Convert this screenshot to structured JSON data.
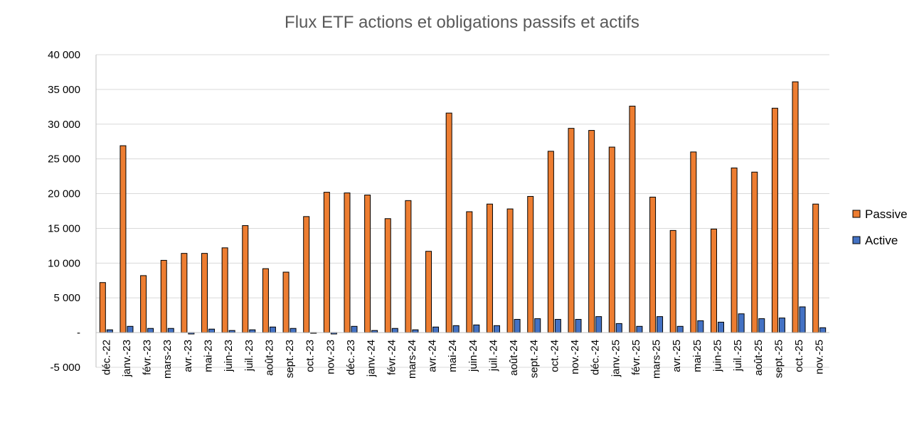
{
  "chart_data": {
    "type": "bar",
    "title": "Flux ETF actions et obligations passifs et actifs",
    "xlabel": "",
    "ylabel": "",
    "ylim": [
      -5000,
      40000
    ],
    "y_ticks": [
      -5000,
      0,
      5000,
      10000,
      15000,
      20000,
      25000,
      30000,
      35000,
      40000
    ],
    "y_tick_labels": [
      "-5 000",
      "-",
      "5 000",
      "10 000",
      "15 000",
      "20 000",
      "25 000",
      "30 000",
      "35 000",
      "40 000"
    ],
    "grid": true,
    "legend_position": "right",
    "categories": [
      "déc.-22",
      "janv.-23",
      "févr.-23",
      "mars-23",
      "avr.-23",
      "mai-23",
      "juin-23",
      "juil.-23",
      "août-23",
      "sept.-23",
      "oct.-23",
      "nov.-23",
      "déc.-23",
      "janv.-24",
      "févr.-24",
      "mars-24",
      "avr.-24",
      "mai-24",
      "juin-24",
      "juil.-24",
      "août-24",
      "sept.-24",
      "oct.-24",
      "nov.-24",
      "déc.-24",
      "janv.-25",
      "févr.-25",
      "mars-25",
      "avr.-25",
      "mai-25",
      "juin-25",
      "juil.-25",
      "août-25",
      "sept.-25",
      "oct.-25",
      "nov.-25"
    ],
    "series": [
      {
        "name": "Passive",
        "color": "#ED7D31",
        "values": [
          7200,
          26900,
          8200,
          10400,
          11400,
          11400,
          12200,
          15400,
          9200,
          8700,
          16700,
          20200,
          20100,
          19800,
          16400,
          19000,
          11700,
          31600,
          17400,
          18500,
          17800,
          19600,
          26100,
          29400,
          29100,
          26700,
          32600,
          19500,
          14700,
          26000,
          14900,
          23700,
          23100,
          32300,
          36100,
          18500
        ]
      },
      {
        "name": "Active",
        "color": "#4472C4",
        "values": [
          400,
          900,
          600,
          600,
          -200,
          500,
          300,
          400,
          800,
          600,
          -100,
          -200,
          900,
          300,
          600,
          400,
          800,
          1000,
          1100,
          1000,
          1900,
          2000,
          1900,
          1900,
          2300,
          1300,
          900,
          2300,
          900,
          1700,
          1500,
          2700,
          2000,
          2100,
          3700,
          700
        ]
      }
    ]
  }
}
